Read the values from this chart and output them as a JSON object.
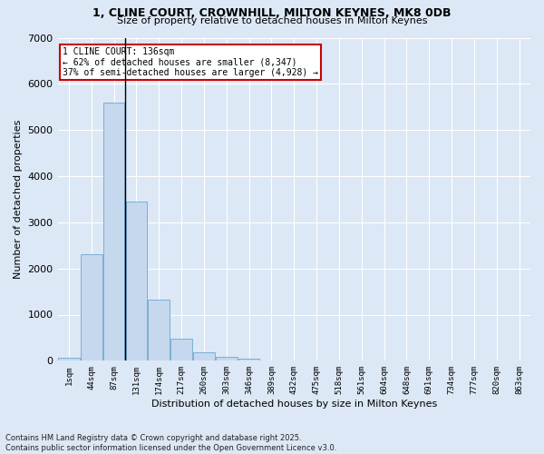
{
  "title_line1": "1, CLINE COURT, CROWNHILL, MILTON KEYNES, MK8 0DB",
  "title_line2": "Size of property relative to detached houses in Milton Keynes",
  "xlabel": "Distribution of detached houses by size in Milton Keynes",
  "ylabel": "Number of detached properties",
  "footnote": "Contains HM Land Registry data © Crown copyright and database right 2025.\nContains public sector information licensed under the Open Government Licence v3.0.",
  "bin_labels": [
    "1sqm",
    "44sqm",
    "87sqm",
    "131sqm",
    "174sqm",
    "217sqm",
    "260sqm",
    "303sqm",
    "346sqm",
    "389sqm",
    "432sqm",
    "475sqm",
    "518sqm",
    "561sqm",
    "604sqm",
    "648sqm",
    "691sqm",
    "734sqm",
    "777sqm",
    "820sqm",
    "863sqm"
  ],
  "bar_values": [
    75,
    2300,
    5600,
    3450,
    1320,
    475,
    190,
    90,
    50,
    0,
    0,
    0,
    0,
    0,
    0,
    0,
    0,
    0,
    0,
    0,
    0
  ],
  "bar_color": "#c5d8ee",
  "bar_edge_color": "#7bafd4",
  "marker_bin_index": 3,
  "annotation_title": "1 CLINE COURT: 136sqm",
  "annotation_line2": "← 62% of detached houses are smaller (8,347)",
  "annotation_line3": "37% of semi-detached houses are larger (4,928) →",
  "annotation_box_color": "#ffffff",
  "annotation_box_edge": "#cc0000",
  "ylim": [
    0,
    7000
  ],
  "yticks": [
    0,
    1000,
    2000,
    3000,
    4000,
    5000,
    6000,
    7000
  ],
  "background_color": "#dce8f5",
  "grid_color": "#ffffff",
  "title_fontsize": 9,
  "subtitle_fontsize": 8,
  "footnote_fontsize": 6
}
